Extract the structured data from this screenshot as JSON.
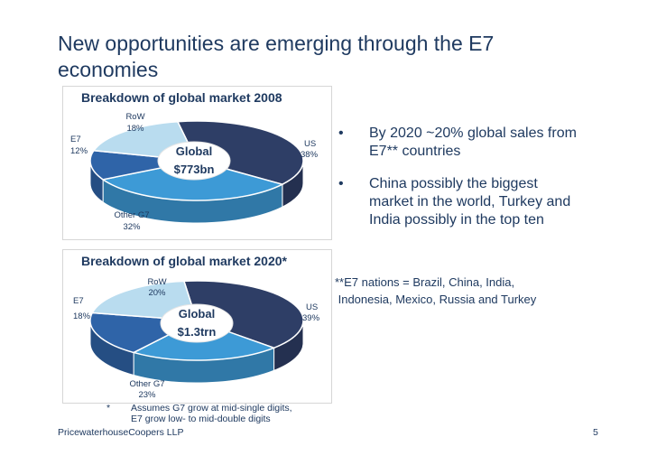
{
  "title_line1": "New opportunities are emerging through the E7",
  "title_line2": "economies",
  "colors": {
    "US": "#2e3e66",
    "Other G7": "#3d9ad6",
    "E7": "#2f64a8",
    "RoW": "#b9dcef"
  },
  "chart_data": [
    {
      "type": "pie",
      "title": "Breakdown of global market 2008",
      "center_label": [
        "Global",
        "$773bn"
      ],
      "slices": [
        {
          "name": "US",
          "value": 38,
          "label": "38%"
        },
        {
          "name": "Other G7",
          "value": 32,
          "label": "32%"
        },
        {
          "name": "E7",
          "value": 12,
          "label": "12%"
        },
        {
          "name": "RoW",
          "value": 18,
          "label": "18%"
        }
      ]
    },
    {
      "type": "pie",
      "title": "Breakdown of global market 2020*",
      "center_label": [
        "Global",
        "$1.3trn"
      ],
      "slices": [
        {
          "name": "US",
          "value": 39,
          "label": "39%"
        },
        {
          "name": "Other G7",
          "value": 23,
          "label": "23%"
        },
        {
          "name": "E7",
          "value": 18,
          "label": "18%"
        },
        {
          "name": "RoW",
          "value": 20,
          "label": "20%"
        }
      ]
    }
  ],
  "bullets": [
    {
      "marker": "•",
      "text_lines": [
        "By 2020 ~20% global sales from",
        "E7** countries"
      ]
    },
    {
      "marker": "•",
      "text_lines": [
        "China possibly the biggest",
        "market in the world,  Turkey and",
        "India possibly in the top ten"
      ]
    }
  ],
  "note_lines": [
    "**E7 nations = Brazil, China, India,",
    " Indonesia, Mexico, Russia and Turkey"
  ],
  "footnote": {
    "marker": "*",
    "lines": [
      "Assumes G7 grow at mid-single digits,",
      "E7 grow low- to mid-double digits"
    ]
  },
  "footer": {
    "company": "PricewaterhouseCoopers LLP",
    "page": "5"
  }
}
